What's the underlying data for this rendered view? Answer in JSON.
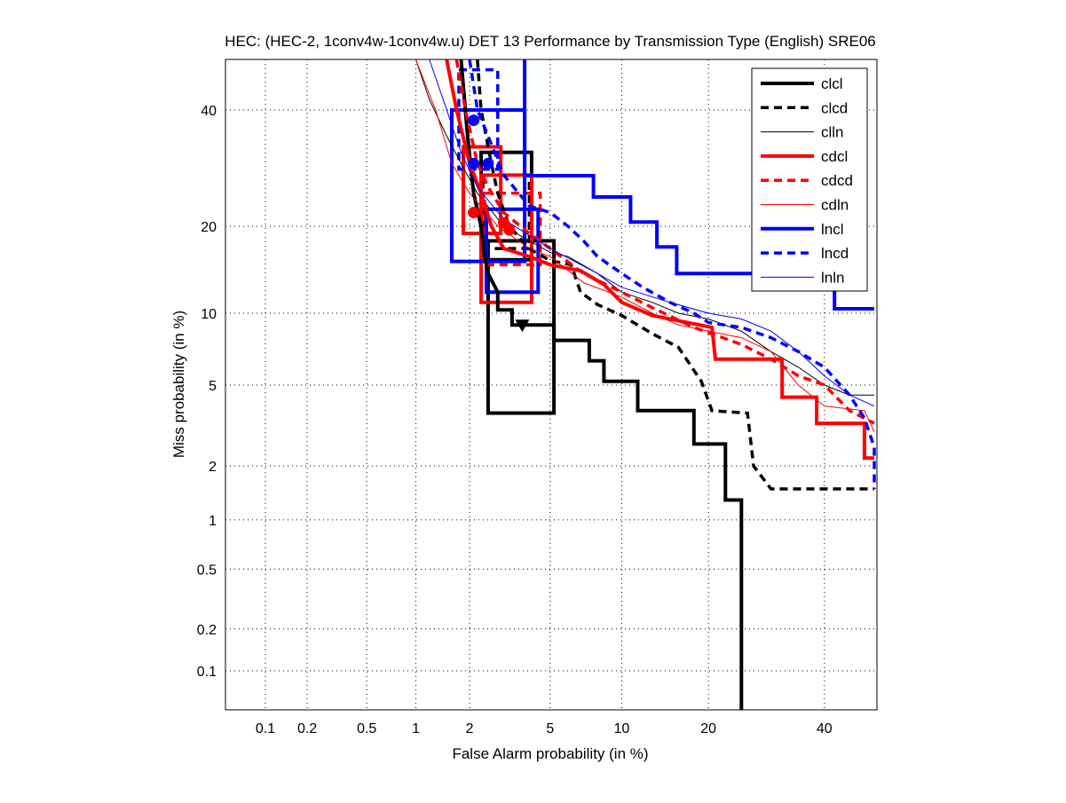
{
  "chart_data": {
    "type": "line",
    "title": "HEC: (HEC-2, 1conv4w-1conv4w.u) DET 13 Performance by Transmission Type (English) SRE06",
    "xlabel": "False Alarm probability (in %)",
    "ylabel": "Miss probability (in %)",
    "scale": "probit",
    "xlim": [
      0.05,
      50
    ],
    "ylim": [
      0.05,
      50
    ],
    "xticks": [
      0.1,
      0.2,
      0.5,
      1,
      2,
      5,
      10,
      20,
      40
    ],
    "xtick_labels": [
      "0.1",
      "0.2",
      "0.5",
      "1",
      "2",
      "5",
      "10",
      "20",
      "40"
    ],
    "yticks": [
      0.1,
      0.2,
      0.5,
      1,
      2,
      5,
      10,
      20,
      40
    ],
    "ytick_labels": [
      "0.1",
      "0.2",
      "0.5",
      "1",
      "2",
      "5",
      "10",
      "20",
      "40"
    ],
    "grid": true,
    "legend_position": "top-right",
    "series": [
      {
        "name": "clcl",
        "color": "#000000",
        "style": "thick",
        "points": [
          [
            1.8,
            50
          ],
          [
            1.95,
            35
          ],
          [
            2.1,
            25
          ],
          [
            2.3,
            20
          ],
          [
            2.4,
            16
          ],
          [
            2.5,
            14
          ],
          [
            2.8,
            12
          ],
          [
            2.8,
            10.3
          ],
          [
            3.3,
            10.3
          ],
          [
            3.3,
            9
          ],
          [
            5.2,
            9
          ],
          [
            5.2,
            7.8
          ],
          [
            7.4,
            7.8
          ],
          [
            7.4,
            6.4
          ],
          [
            8.5,
            6.4
          ],
          [
            8.5,
            5.2
          ],
          [
            11.5,
            5.2
          ],
          [
            11.5,
            3.8
          ],
          [
            18,
            3.8
          ],
          [
            18,
            2.6
          ],
          [
            22.5,
            2.6
          ],
          [
            22.5,
            1.3
          ],
          [
            25,
            1.3
          ],
          [
            25,
            0.05
          ]
        ]
      },
      {
        "name": "clcd",
        "color": "#000000",
        "style": "dashed",
        "points": [
          [
            2.2,
            50
          ],
          [
            2.3,
            40
          ],
          [
            2.6,
            30
          ],
          [
            2.8,
            25
          ],
          [
            3.2,
            20
          ],
          [
            4,
            17
          ],
          [
            5,
            15.5
          ],
          [
            6.2,
            15
          ],
          [
            6.8,
            12
          ],
          [
            8,
            10.8
          ],
          [
            10,
            9.8
          ],
          [
            13,
            8.3
          ],
          [
            16,
            7.3
          ],
          [
            19,
            5.2
          ],
          [
            20.5,
            3.8
          ],
          [
            26,
            3.7
          ],
          [
            27,
            2
          ],
          [
            30,
            1.5
          ],
          [
            50,
            1.5
          ]
        ]
      },
      {
        "name": "clln",
        "color": "#000000",
        "style": "thin",
        "points": [
          [
            1,
            50
          ],
          [
            1.2,
            42
          ],
          [
            1.5,
            35
          ],
          [
            1.8,
            30
          ],
          [
            2.2,
            25
          ],
          [
            3,
            20
          ],
          [
            4,
            18
          ],
          [
            5,
            16.5
          ],
          [
            6,
            16
          ],
          [
            8,
            14
          ],
          [
            10,
            12
          ],
          [
            13,
            11
          ],
          [
            16,
            10
          ],
          [
            20,
            9.5
          ],
          [
            25,
            8.5
          ],
          [
            30,
            7
          ],
          [
            35,
            6
          ],
          [
            40,
            5
          ],
          [
            45,
            4.5
          ],
          [
            50,
            4.5
          ]
        ]
      },
      {
        "name": "cdcl",
        "color": "#ff0000",
        "style": "thick",
        "points": [
          [
            1.5,
            50
          ],
          [
            1.7,
            40
          ],
          [
            2,
            30
          ],
          [
            2.3,
            25
          ],
          [
            2.6,
            20
          ],
          [
            3,
            17
          ],
          [
            4,
            16
          ],
          [
            5,
            15
          ],
          [
            6.8,
            14.3
          ],
          [
            8.5,
            12.8
          ],
          [
            10,
            11
          ],
          [
            13,
            9.8
          ],
          [
            20.5,
            8.8
          ],
          [
            21,
            6.5
          ],
          [
            32,
            6.5
          ],
          [
            32,
            4.4
          ],
          [
            38.5,
            4.4
          ],
          [
            38.5,
            3.3
          ],
          [
            48,
            3.3
          ],
          [
            48,
            2.2
          ],
          [
            50,
            2.2
          ]
        ]
      },
      {
        "name": "cdcd",
        "color": "#ff0000",
        "style": "dashed",
        "points": [
          [
            1.7,
            50
          ],
          [
            1.9,
            40
          ],
          [
            2.2,
            30
          ],
          [
            2.5,
            26
          ],
          [
            3,
            22
          ],
          [
            4,
            19
          ],
          [
            5,
            17
          ],
          [
            7,
            14
          ],
          [
            10,
            12
          ],
          [
            13,
            10.5
          ],
          [
            18,
            8.8
          ],
          [
            25,
            7.5
          ],
          [
            30,
            6.5
          ],
          [
            35,
            5.5
          ],
          [
            40,
            5
          ],
          [
            45,
            3.8
          ],
          [
            50,
            3.3
          ]
        ]
      },
      {
        "name": "cdln",
        "color": "#ff0000",
        "style": "thin",
        "points": [
          [
            1,
            50
          ],
          [
            1.3,
            40
          ],
          [
            1.6,
            30
          ],
          [
            2,
            25
          ],
          [
            2.8,
            20
          ],
          [
            4,
            17
          ],
          [
            5,
            16
          ],
          [
            7,
            13
          ],
          [
            10,
            11.5
          ],
          [
            13,
            10
          ],
          [
            16,
            9
          ],
          [
            20,
            8.5
          ],
          [
            25,
            8
          ],
          [
            30,
            7
          ],
          [
            35,
            5
          ],
          [
            40,
            4
          ],
          [
            48,
            3.8
          ],
          [
            50,
            3
          ]
        ]
      },
      {
        "name": "lncl",
        "color": "#0000ff",
        "style": "thick",
        "points": [
          [
            3.8,
            50
          ],
          [
            3.8,
            27.9
          ],
          [
            7.7,
            27.9
          ],
          [
            7.7,
            24.4
          ],
          [
            10.8,
            24.4
          ],
          [
            10.8,
            20.6
          ],
          [
            13.5,
            20.6
          ],
          [
            13.5,
            17.2
          ],
          [
            15.8,
            17.2
          ],
          [
            15.8,
            14
          ],
          [
            42,
            14
          ],
          [
            42,
            10.4
          ],
          [
            50,
            10.4
          ]
        ]
      },
      {
        "name": "lncd",
        "color": "#0000ff",
        "style": "dashed",
        "points": [
          [
            2,
            50
          ],
          [
            2.2,
            40
          ],
          [
            2.5,
            35
          ],
          [
            3,
            28
          ],
          [
            4,
            23
          ],
          [
            5,
            22
          ],
          [
            6,
            20
          ],
          [
            7,
            18
          ],
          [
            8,
            16
          ],
          [
            10,
            14
          ],
          [
            12,
            12.5
          ],
          [
            15,
            11
          ],
          [
            18,
            10
          ],
          [
            20,
            9.2
          ],
          [
            25,
            8.8
          ],
          [
            30,
            8
          ],
          [
            35,
            7
          ],
          [
            40,
            6
          ],
          [
            45,
            4.5
          ],
          [
            48,
            3.5
          ],
          [
            50,
            2.5
          ],
          [
            50,
            1.5
          ]
        ]
      },
      {
        "name": "lnln",
        "color": "#0000ff",
        "style": "thin",
        "points": [
          [
            1.2,
            50
          ],
          [
            1.5,
            40
          ],
          [
            1.8,
            32
          ],
          [
            2.2,
            26
          ],
          [
            3,
            21
          ],
          [
            5,
            17
          ],
          [
            8,
            14
          ],
          [
            10,
            12.5
          ],
          [
            15,
            11
          ],
          [
            20,
            10
          ],
          [
            25,
            9.5
          ],
          [
            30,
            8.5
          ],
          [
            35,
            7
          ],
          [
            40,
            5.5
          ],
          [
            45,
            4.5
          ],
          [
            50,
            4
          ]
        ]
      }
    ],
    "confidence_boxes": [
      {
        "series": "clcl",
        "fa": [
          2.5,
          5.2
        ],
        "miss": [
          3.7,
          18
        ]
      },
      {
        "series": "clcl",
        "fa": [
          2.3,
          4.1
        ],
        "miss": [
          15.6,
          32
        ]
      },
      {
        "series": "clcd",
        "fa": [
          2.35,
          4.0
        ],
        "miss": [
          17,
          28
        ]
      },
      {
        "series": "cdcl",
        "fa": [
          1.85,
          2.9
        ],
        "miss": [
          19,
          33
        ]
      },
      {
        "series": "cdcl",
        "fa": [
          2.3,
          4.1
        ],
        "miss": [
          11,
          28
        ]
      },
      {
        "series": "cdcd",
        "fa": [
          2.4,
          4.5
        ],
        "miss": [
          15,
          25
        ]
      },
      {
        "series": "lncl",
        "fa": [
          1.6,
          3.8
        ],
        "miss": [
          15.4,
          40
        ]
      },
      {
        "series": "lncl",
        "fa": [
          2.45,
          4.4
        ],
        "miss": [
          12,
          22.5
        ]
      },
      {
        "series": "lncd",
        "fa": [
          1.75,
          2.8
        ],
        "miss": [
          29,
          48
        ]
      }
    ],
    "markers": [
      {
        "series": "clcl",
        "fa": 3.7,
        "miss": 9,
        "shape": "triangle"
      },
      {
        "series": "cdcl",
        "fa": 3.2,
        "miss": 19.5,
        "shape": "circle"
      },
      {
        "series": "cdcl",
        "fa": 2.1,
        "miss": 22,
        "shape": "circle"
      },
      {
        "series": "cdcd",
        "fa": 3.0,
        "miss": 20.5,
        "shape": "circle"
      },
      {
        "series": "lncl",
        "fa": 2.1,
        "miss": 38,
        "shape": "circle"
      },
      {
        "series": "lncd",
        "fa": 2.1,
        "miss": 30,
        "shape": "circle"
      },
      {
        "series": "lncl",
        "fa": 2.5,
        "miss": 30,
        "shape": "circle"
      }
    ]
  }
}
